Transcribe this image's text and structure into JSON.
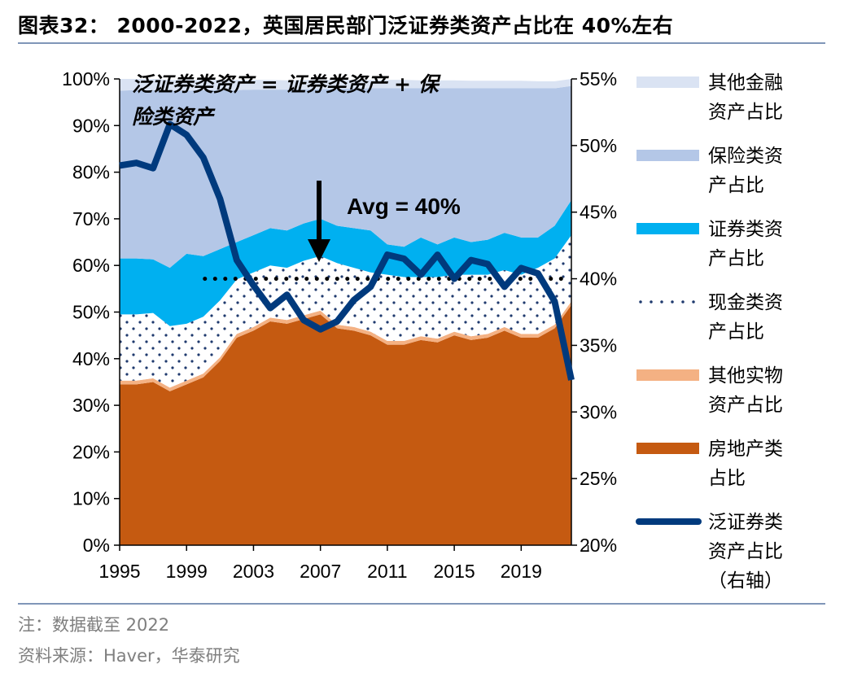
{
  "title": "图表32： 2000-2022，英国居民部门泛证券类资产占比在 40%左右",
  "notes": [
    "注：数据截至 2022",
    "资料来源：Haver，华泰研究"
  ],
  "chart_data": {
    "type": "area",
    "title": "2000-2022，英国居民部门泛证券类资产占比在 40%左右",
    "x": [
      1995,
      1996,
      1997,
      1998,
      1999,
      2000,
      2001,
      2002,
      2003,
      2004,
      2005,
      2006,
      2007,
      2008,
      2009,
      2010,
      2011,
      2012,
      2013,
      2014,
      2015,
      2016,
      2017,
      2018,
      2019,
      2020,
      2021,
      2022
    ],
    "x_ticks": [
      "1995",
      "1999",
      "2003",
      "2007",
      "2011",
      "2015",
      "2019"
    ],
    "y_left": {
      "range": [
        0,
        100
      ],
      "ticks": [
        "0%",
        "10%",
        "20%",
        "30%",
        "40%",
        "50%",
        "60%",
        "70%",
        "80%",
        "90%",
        "100%"
      ]
    },
    "y_right": {
      "range": [
        20,
        55
      ],
      "ticks": [
        "20%",
        "25%",
        "30%",
        "35%",
        "40%",
        "45%",
        "50%",
        "55%"
      ]
    },
    "stacked": true,
    "series": [
      {
        "name": "房地产类占比",
        "axis": "left",
        "color": "#C55A11",
        "values": [
          34.5,
          34.5,
          35,
          33,
          34.5,
          36,
          39.5,
          44.5,
          46,
          48,
          47.5,
          48.5,
          49.5,
          46.5,
          46,
          45,
          43,
          43,
          44,
          43.5,
          45,
          44,
          44.5,
          46,
          44.5,
          44.5,
          46.5,
          51.5
        ]
      },
      {
        "name": "其他实物资产占比",
        "axis": "left",
        "color": "#F4B183",
        "values": [
          0.8,
          0.8,
          0.8,
          0.8,
          0.8,
          0.8,
          0.8,
          0.8,
          0.8,
          0.8,
          0.8,
          0.8,
          0.8,
          0.8,
          0.8,
          0.8,
          0.8,
          0.8,
          0.8,
          0.8,
          0.8,
          0.8,
          0.8,
          0.8,
          0.8,
          0.8,
          0.8,
          0.8
        ]
      },
      {
        "name": "现金类资产占比",
        "axis": "left",
        "color": "#FFFFFF",
        "pattern": "navy-dots",
        "values": [
          14.2,
          14.2,
          14,
          13.2,
          12.2,
          12.2,
          12.2,
          11.7,
          11.7,
          11.2,
          11.2,
          11.7,
          11.7,
          13.2,
          12.7,
          12.7,
          14.2,
          13.7,
          12.7,
          13.2,
          12.2,
          13.2,
          12.7,
          12.2,
          12.7,
          14.2,
          14.2,
          14.2
        ]
      },
      {
        "name": "证券类资产占比",
        "axis": "left",
        "color": "#00B0F0",
        "values": [
          12,
          12,
          11.5,
          12.5,
          15,
          13,
          11,
          8,
          8,
          8,
          8,
          8,
          8,
          8,
          8.5,
          9,
          6.5,
          6.5,
          8.5,
          7,
          8,
          7,
          7.5,
          8,
          8,
          6.5,
          7,
          7.5
        ]
      },
      {
        "name": "保险类资产占比",
        "axis": "left",
        "color": "#B4C7E7",
        "values": [
          36,
          36.1,
          36.3,
          38,
          35,
          35.6,
          34.1,
          32.6,
          31.2,
          29.7,
          30.2,
          28.8,
          27.8,
          29.4,
          29.9,
          30.5,
          33.5,
          34,
          32,
          33.5,
          32,
          33,
          32.5,
          31,
          32,
          32,
          29.5,
          24.5
        ]
      },
      {
        "name": "其他金融资产占比",
        "axis": "left",
        "color": "#DAE3F3",
        "values": [
          2.5,
          2.4,
          2.4,
          2.3,
          2.3,
          2.2,
          2.2,
          2.2,
          2.1,
          2.1,
          2,
          2,
          2,
          1.9,
          1.9,
          1.8,
          1.8,
          1.8,
          1.7,
          1.7,
          1.7,
          1.6,
          1.6,
          1.6,
          1.6,
          1.5,
          1.5,
          1.5
        ]
      },
      {
        "name": "泛证券类资产占比（右轴）",
        "axis": "right",
        "type": "line",
        "color": "#003A7D",
        "values": [
          48.5,
          48.7,
          48.3,
          51.6,
          50.8,
          49.1,
          46,
          41.4,
          39.5,
          37.8,
          38.8,
          36.9,
          36.2,
          36.8,
          38.4,
          39.4,
          41.8,
          41.5,
          40.3,
          41.8,
          40,
          41.4,
          41.1,
          39.4,
          40.8,
          40.4,
          38.3,
          32.4
        ]
      }
    ],
    "avg_line": {
      "axis": "right",
      "value": 40,
      "from": 2000,
      "to": 2022,
      "style": "dotted"
    },
    "annotations": [
      "泛证券类资产 = 证券类资产 + 保险类资产",
      "Avg = 40%"
    ],
    "legend": "right",
    "legend_labels": [
      [
        "其他金融",
        "资产占比"
      ],
      [
        "保险类资",
        "产占比"
      ],
      [
        "证券类资",
        "产占比"
      ],
      [
        "现金类资",
        "产占比"
      ],
      [
        "其他实物",
        "资产占比"
      ],
      [
        "房地产类",
        "占比"
      ],
      [
        "泛证券类",
        "资产占比",
        "（右轴）"
      ]
    ]
  }
}
